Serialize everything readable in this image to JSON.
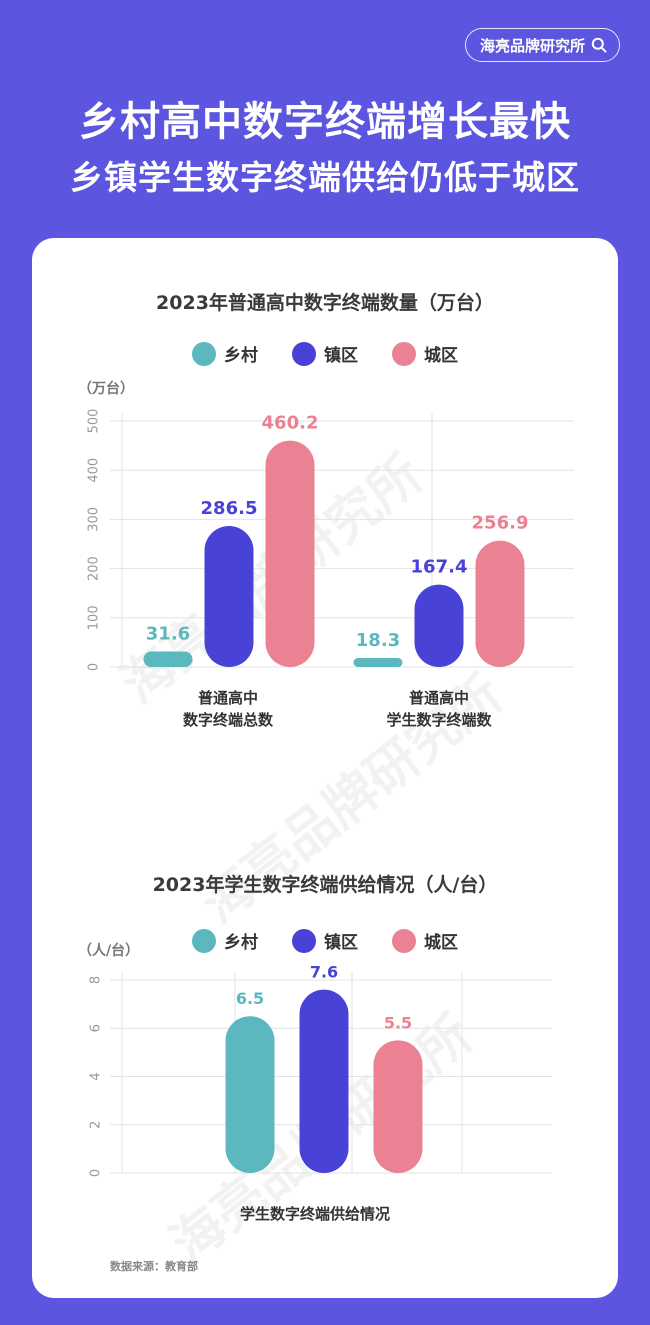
{
  "brand": {
    "name": "海亮品牌研究所",
    "icon": "search-icon"
  },
  "headline": {
    "line1": "乡村高中数字终端增长最快",
    "line2": "乡镇学生数字终端供给仍低于城区"
  },
  "watermark": "海亮品牌研究所",
  "colors": {
    "background": "#5B55DF",
    "rural": "#5BB8BE",
    "town": "#4942D6",
    "urban": "#EA8293"
  },
  "chart_data": [
    {
      "type": "bar",
      "title": "2023年普通高中数字终端数量（万台）",
      "ylabel": "（万台）",
      "ylim": [
        0,
        500
      ],
      "yticks": [
        "0",
        "100",
        "200",
        "300",
        "400",
        "500"
      ],
      "categories": [
        "普通高中\n数字终端总数",
        "普通高中\n学生数字终端数"
      ],
      "series": [
        {
          "name": "乡村",
          "color": "#5BB8BE",
          "values": [
            31.6,
            18.3
          ],
          "labels": [
            "31.6",
            "18.3"
          ]
        },
        {
          "name": "镇区",
          "color": "#4942D6",
          "values": [
            286.5,
            167.4
          ],
          "labels": [
            "286.5",
            "167.4"
          ]
        },
        {
          "name": "城区",
          "color": "#EA8293",
          "values": [
            460.2,
            256.9
          ],
          "labels": [
            "460.2",
            "256.9"
          ]
        }
      ],
      "grid": true,
      "legend": "top-center"
    },
    {
      "type": "bar",
      "title": "2023年学生数字终端供给情况（人/台）",
      "ylabel": "（人/台）",
      "ylim": [
        0,
        8
      ],
      "yticks": [
        "0",
        "2",
        "4",
        "6",
        "8"
      ],
      "categories": [
        "学生数字终端供给情况"
      ],
      "series": [
        {
          "name": "乡村",
          "color": "#5BB8BE",
          "values": [
            6.5
          ],
          "labels": [
            "6.5"
          ]
        },
        {
          "name": "镇区",
          "color": "#4942D6",
          "values": [
            7.6
          ],
          "labels": [
            "7.6"
          ]
        },
        {
          "name": "城区",
          "color": "#EA8293",
          "values": [
            5.5
          ],
          "labels": [
            "5.5"
          ]
        }
      ],
      "grid": true,
      "legend": "top-center"
    }
  ],
  "source": "数据来源：教育部"
}
